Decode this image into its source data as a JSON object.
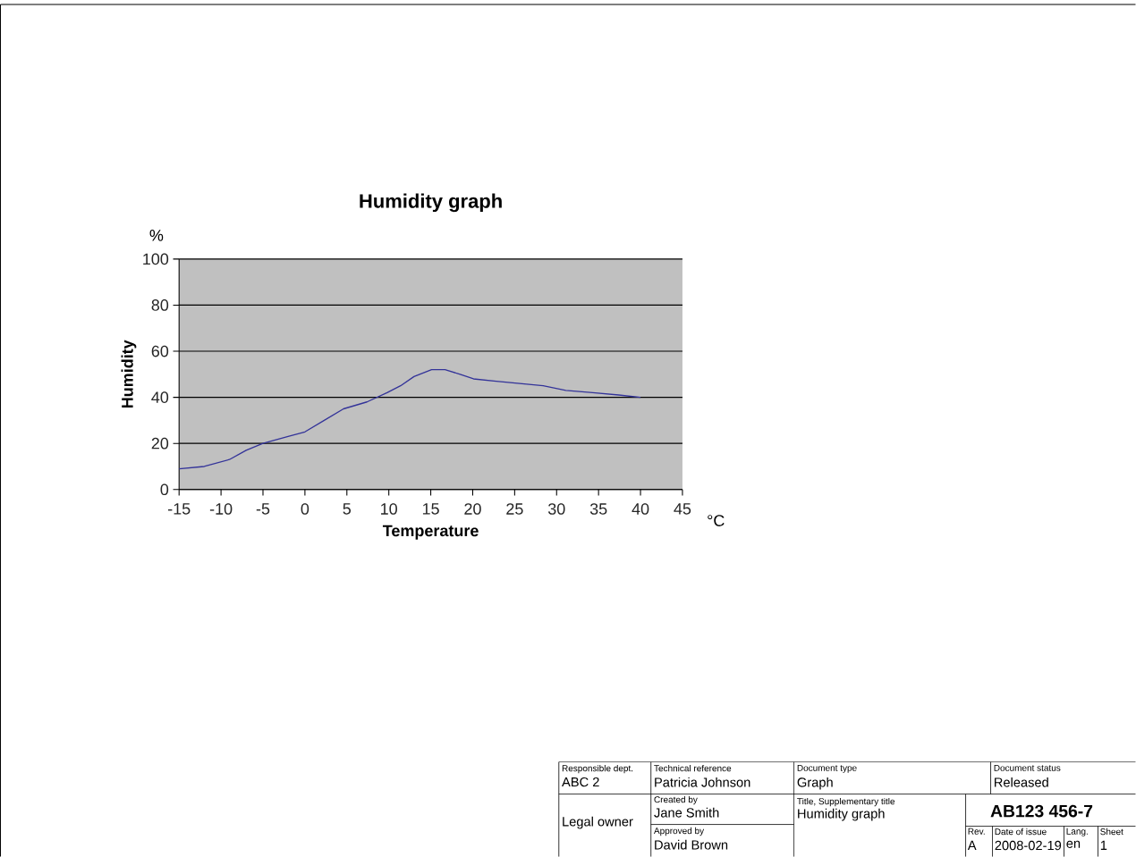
{
  "chart_data": {
    "type": "line",
    "title": "Humidity graph",
    "xlabel": "Temperature",
    "ylabel": "Humidity",
    "x": [
      -15,
      -12,
      -9,
      -7,
      -5,
      -2,
      0,
      2.3,
      4.6,
      7.4,
      9.8,
      11.4,
      13,
      15.1,
      16.7,
      18.5,
      20.1,
      22.8,
      25.6,
      28.4,
      31.1,
      34.3,
      37.4,
      40
    ],
    "series": [
      {
        "color": "#333399",
        "values": [
          9,
          10,
          13,
          17,
          20,
          23,
          25,
          30,
          35,
          38,
          42,
          45,
          49,
          52,
          52,
          50,
          48,
          47,
          46,
          45,
          43,
          42,
          41,
          40
        ]
      }
    ],
    "xlim": [
      -15,
      45
    ],
    "xticks": [
      -15,
      -10,
      -5,
      0,
      5,
      10,
      15,
      20,
      25,
      30,
      35,
      40,
      45
    ],
    "ylim": [
      0,
      100
    ],
    "yticks": [
      0,
      20,
      40,
      60,
      80,
      100
    ],
    "grid": "y",
    "legend": false,
    "marker": "none",
    "line_style": "solid",
    "annotations": [
      "%",
      "°C",
      "Responsible dept.",
      "ABC 2",
      "Technical reference",
      "Patricia Johnson",
      "Document type",
      "Graph",
      "Document status",
      "Released",
      "Legal owner",
      "Created by",
      "Jane Smith",
      "Approved by",
      "David Brown",
      "Title, Supplementary title",
      "Humidity graph",
      "AB123 456-7",
      "Rev.",
      "A",
      "Date of issue",
      "2008-02-19",
      "Lang.",
      "en",
      "Sheet",
      "1"
    ]
  }
}
